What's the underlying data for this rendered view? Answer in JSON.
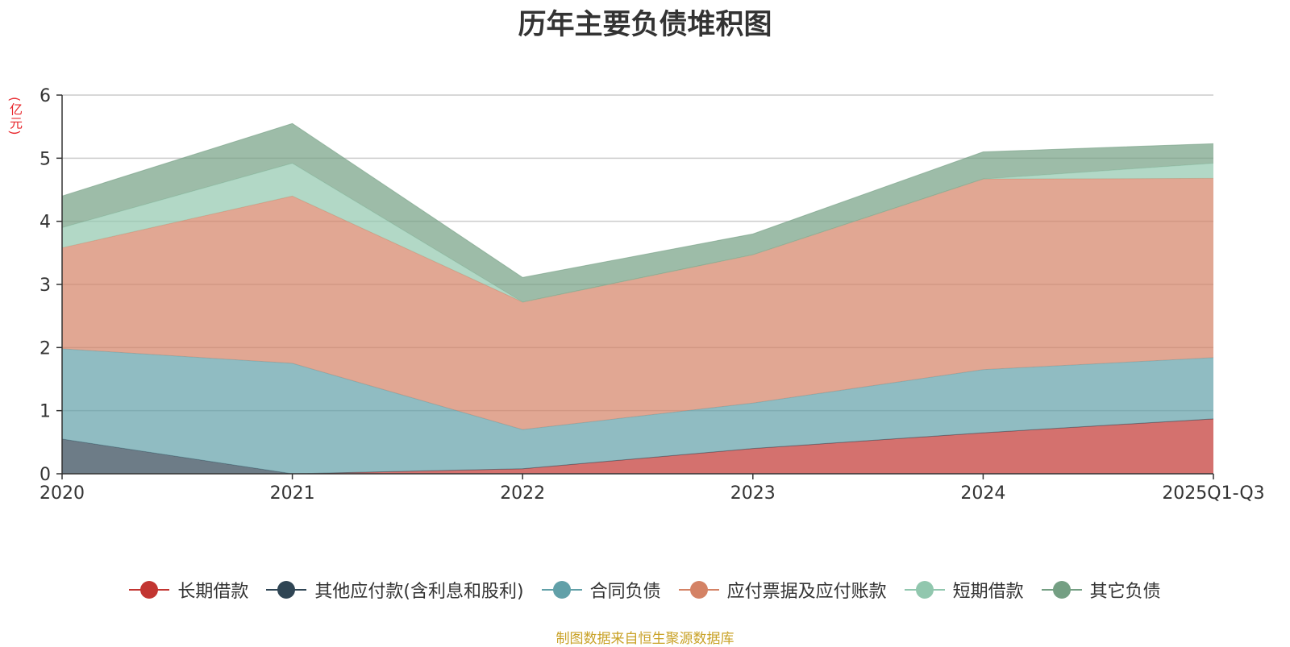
{
  "chart_data": {
    "type": "area",
    "stacked": true,
    "title": "历年主要负债堆积图",
    "y_unit": "(亿元)",
    "x": [
      "2020",
      "2021",
      "2022",
      "2023",
      "2024",
      "2025Q1-Q3"
    ],
    "ylim": [
      0,
      6
    ],
    "y_ticks": [
      "0",
      "1",
      "2",
      "3",
      "4",
      "5",
      "6"
    ],
    "grid": true,
    "legend_position": "bottom",
    "series": [
      {
        "name": "长期借款",
        "color": "#c23531",
        "values": [
          0,
          0,
          0.08,
          0.4,
          0.65,
          0.87
        ]
      },
      {
        "name": "其他应付款(含利息和股利)",
        "color": "#2f4554",
        "values": [
          0.55,
          0,
          0,
          0,
          0,
          0
        ]
      },
      {
        "name": "合同负债",
        "color": "#61a0a8",
        "values": [
          1.43,
          1.75,
          0.62,
          0.72,
          1.0,
          0.97
        ]
      },
      {
        "name": "应付票据及应付账款",
        "color": "#d48265",
        "values": [
          1.6,
          2.65,
          2.02,
          2.35,
          3.02,
          2.84
        ]
      },
      {
        "name": "短期借款",
        "color": "#91c7ae",
        "values": [
          0.32,
          0.52,
          0,
          0,
          0,
          0.24
        ]
      },
      {
        "name": "其它负债",
        "color": "#749f83",
        "values": [
          0.5,
          0.63,
          0.39,
          0.33,
          0.43,
          0.31
        ]
      }
    ],
    "source_note": "制图数据来自恒生聚源数据库",
    "source_color": "#c9a227",
    "unit_color": "#e8282d"
  }
}
